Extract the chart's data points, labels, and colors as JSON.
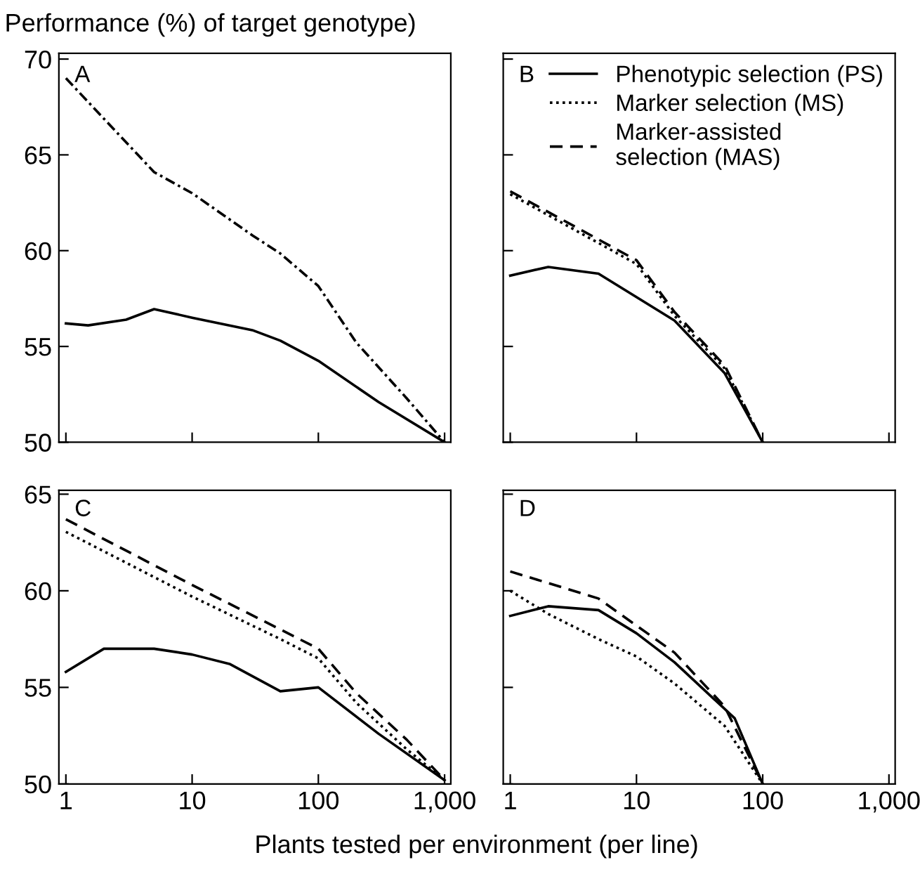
{
  "chart_data": [
    {
      "type": "line",
      "title": "Performance (%) of target genotype)",
      "annotations": [
        "A"
      ],
      "xlim": [
        0.88,
        1120
      ],
      "ylim": [
        50,
        70.3
      ],
      "log": "x",
      "xticks": [
        {
          "value": 1,
          "label": null
        },
        {
          "value": 10,
          "label": null
        },
        {
          "value": 100,
          "label": null
        },
        {
          "value": 1000,
          "label": null
        }
      ],
      "yticks": [
        50,
        55,
        60,
        65,
        70
      ],
      "tick_labels": "y",
      "grid": false,
      "legend": false,
      "marker": "none",
      "series": [
        {
          "color": "#000000",
          "line_style": "solid",
          "x": [
            1,
            1.5,
            3,
            5,
            10,
            30,
            50,
            100,
            300,
            1000
          ],
          "values": [
            56.2,
            56.1,
            56.4,
            56.95,
            56.5,
            55.85,
            55.3,
            54.25,
            52.1,
            50
          ]
        },
        {
          "color": "#000000",
          "line_style": "dashdot",
          "x": [
            1,
            5,
            10,
            30,
            50,
            100,
            200,
            500,
            1000
          ],
          "values": [
            69,
            64.1,
            63.0,
            60.8,
            59.85,
            58.15,
            55.2,
            52.3,
            50
          ]
        }
      ]
    },
    {
      "type": "line",
      "annotations": [
        "B"
      ],
      "xlim": [
        0.88,
        1120
      ],
      "ylim": [
        50,
        70.3
      ],
      "log": "x",
      "xticks": [
        {
          "value": 1,
          "label": null
        },
        {
          "value": 10,
          "label": null
        },
        {
          "value": 100,
          "label": null
        },
        {
          "value": 1000,
          "label": null
        }
      ],
      "yticks": [
        50,
        55,
        60,
        65,
        70
      ],
      "tick_labels": false,
      "grid": false,
      "legend": "top right",
      "marker": "none",
      "series": [
        {
          "name": "Phenotypic selection (PS)",
          "color": "#000000",
          "line_style": "solid",
          "x": [
            1,
            2,
            5,
            20,
            50,
            100
          ],
          "values": [
            58.7,
            59.15,
            58.8,
            56.35,
            53.6,
            50
          ]
        },
        {
          "name": "Marker selection (MS)",
          "color": "#000000",
          "line_style": "dotted",
          "x": [
            1,
            10,
            20,
            50,
            100
          ],
          "values": [
            62.95,
            59.3,
            56.6,
            53.85,
            50
          ]
        },
        {
          "name": "Marker-assisted\nselection (MAS)",
          "color": "#000000",
          "line_style": "dashed",
          "x": [
            1,
            10,
            20,
            50,
            100
          ],
          "values": [
            63.1,
            59.5,
            56.8,
            54.0,
            50
          ]
        }
      ]
    },
    {
      "type": "line",
      "annotations": [
        "C"
      ],
      "xlabel": "Plants tested per environment (per line)",
      "xlim": [
        0.88,
        1120
      ],
      "ylim": [
        50,
        65.2
      ],
      "log": "x",
      "xticks": [
        1,
        10,
        100,
        {
          "value": 1000,
          "label": "1,000"
        }
      ],
      "yticks": [
        50,
        55,
        60,
        65
      ],
      "grid": false,
      "legend": false,
      "marker": "none",
      "series": [
        {
          "color": "#000000",
          "line_style": "solid",
          "x": [
            1,
            2,
            5,
            10,
            20,
            50,
            100,
            300,
            1000
          ],
          "values": [
            55.8,
            57.0,
            57.0,
            56.7,
            56.2,
            54.8,
            55.0,
            52.6,
            50.2
          ]
        },
        {
          "color": "#000000",
          "line_style": "dotted",
          "x": [
            1,
            10,
            50,
            100,
            200,
            500,
            1000
          ],
          "values": [
            63.05,
            59.7,
            57.5,
            56.5,
            54.2,
            51.8,
            50.2
          ]
        },
        {
          "color": "#000000",
          "line_style": "dashed",
          "x": [
            1,
            10,
            50,
            100,
            200,
            500,
            1000
          ],
          "values": [
            63.7,
            60.3,
            58.0,
            57.0,
            54.7,
            52.3,
            50.2
          ]
        }
      ]
    },
    {
      "type": "line",
      "annotations": [
        "D"
      ],
      "xlim": [
        0.88,
        1120
      ],
      "ylim": [
        50,
        65.2
      ],
      "log": "x",
      "xticks": [
        1,
        10,
        100,
        {
          "value": 1000,
          "label": "1,000"
        }
      ],
      "yticks": [
        50,
        55,
        60,
        65
      ],
      "tick_labels": "x",
      "grid": false,
      "legend": false,
      "marker": "none",
      "series": [
        {
          "color": "#000000",
          "line_style": "solid",
          "x": [
            1,
            2,
            5,
            10,
            20,
            60,
            100
          ],
          "values": [
            58.7,
            59.2,
            59.0,
            57.8,
            56.3,
            53.4,
            50
          ]
        },
        {
          "color": "#000000",
          "line_style": "dotted",
          "x": [
            1,
            2,
            5,
            10,
            20,
            50,
            100
          ],
          "values": [
            60.0,
            58.8,
            57.5,
            56.6,
            55.2,
            53.0,
            50
          ]
        },
        {
          "color": "#000000",
          "line_style": "dashed",
          "x": [
            1,
            5,
            10,
            20,
            50,
            100
          ],
          "values": [
            61.0,
            59.6,
            58.2,
            56.8,
            54.0,
            50
          ]
        }
      ]
    }
  ]
}
